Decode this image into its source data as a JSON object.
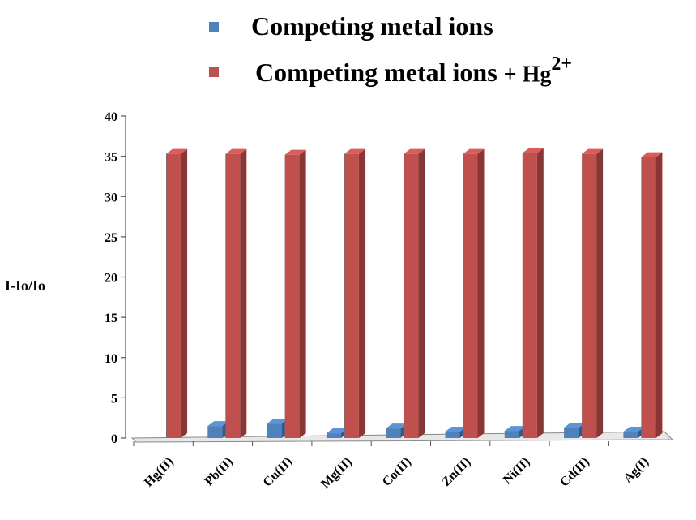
{
  "legend": {
    "series_1": "Competing metal ions",
    "series_2_prefix": "Competing metal ions",
    "series_2_suffix": "+ Hg",
    "series_2_sup": "2+"
  },
  "colors": {
    "series_1": "#4f81bd",
    "series_2": "#c0504d"
  },
  "chart_data": {
    "type": "bar",
    "ylabel": "I-Io/Io",
    "xlabel": "",
    "ylim": [
      0,
      40
    ],
    "yticks": [
      0,
      5,
      10,
      15,
      20,
      25,
      30,
      35,
      40
    ],
    "categories": [
      "Hg(II)",
      "Pb(II)",
      "Cu(II)",
      "Mg(II)",
      "Co(II)",
      "Zn(II)",
      "Ni(II)",
      "Cd(II)",
      "Ag(I)"
    ],
    "series": [
      {
        "name": "Competing metal ions",
        "values": [
          0,
          1.5,
          1.8,
          0.6,
          1.2,
          0.8,
          0.9,
          1.3,
          0.8
        ]
      },
      {
        "name": "Competing metal ions + Hg2+",
        "values": [
          35.3,
          35.3,
          35.2,
          35.3,
          35.3,
          35.3,
          35.4,
          35.3,
          34.9
        ]
      }
    ],
    "grid": false,
    "legend_position": "top"
  }
}
